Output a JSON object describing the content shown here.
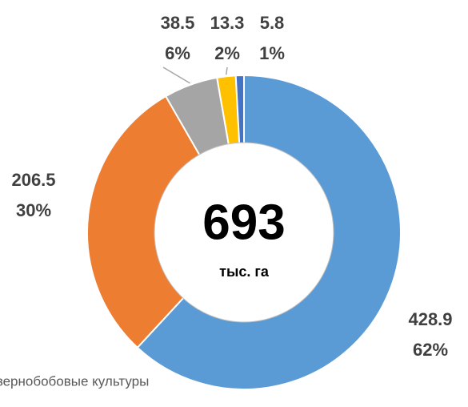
{
  "chart_data": {
    "type": "donut",
    "values": [
      428.9,
      206.5,
      38.5,
      13.3,
      5.8
    ],
    "percents": [
      62,
      30,
      6,
      2,
      1
    ],
    "percent_labels": [
      "62%",
      "30%",
      "6%",
      "2%",
      "1%"
    ],
    "colors": [
      "#5b9bd5",
      "#ed7d31",
      "#a5a5a5",
      "#ffc000",
      "#4472c4"
    ],
    "center_value": 693,
    "center_unit": "тыс. га",
    "legend": [
      "зернобобовые культуры"
    ]
  }
}
